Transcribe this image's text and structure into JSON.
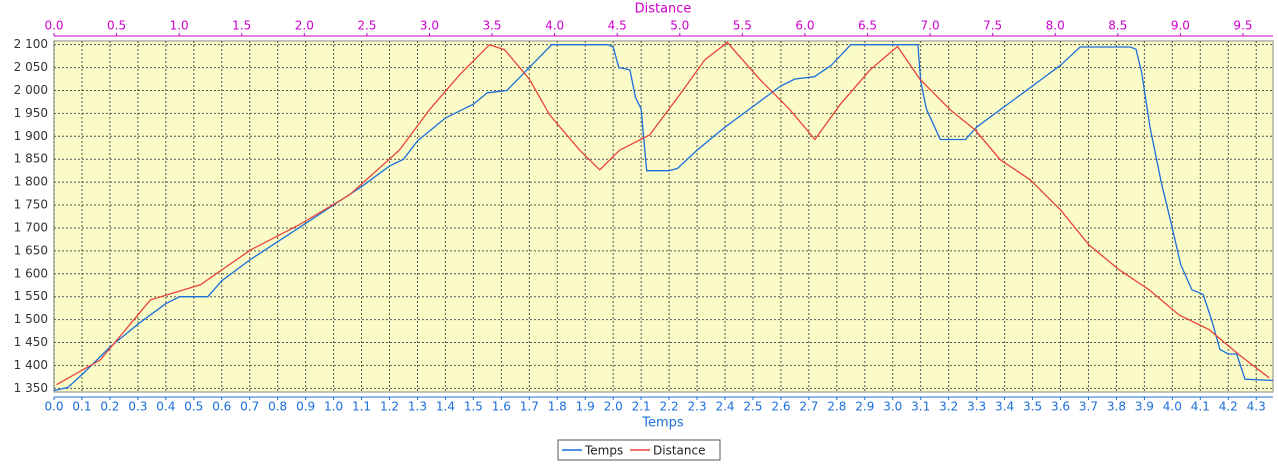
{
  "chart_data": {
    "type": "line",
    "xlabel": "Temps",
    "x2label": "Distance",
    "xlim": [
      0,
      4.36
    ],
    "x2lim": [
      0,
      9.74
    ],
    "ylim": [
      1342,
      2108
    ],
    "xticks": [
      {
        "value": 0,
        "label": "0.0"
      },
      0.1,
      0.2,
      0.3,
      0.4,
      0.5,
      0.6,
      0.7,
      0.8,
      0.9,
      {
        "value": 1,
        "label": "1.0"
      },
      1.1,
      1.2,
      1.3,
      1.4,
      1.5,
      1.6,
      1.7,
      1.8,
      1.9,
      {
        "value": 2,
        "label": "2.0"
      },
      2.1,
      2.2,
      2.3,
      2.4,
      2.5,
      2.6,
      2.7,
      2.8,
      2.9,
      {
        "value": 3,
        "label": "3.0"
      },
      3.1,
      3.2,
      3.3,
      3.4,
      3.5,
      3.6,
      3.7,
      3.8,
      3.9,
      {
        "value": 4,
        "label": "4.0"
      },
      4.1,
      4.2,
      4.3
    ],
    "x2ticks": [
      {
        "value": 0,
        "label": "0.0"
      },
      0.5,
      {
        "value": 1,
        "label": "1.0"
      },
      1.5,
      {
        "value": 2,
        "label": "2.0"
      },
      2.5,
      {
        "value": 3,
        "label": "3.0"
      },
      3.5,
      {
        "value": 4,
        "label": "4.0"
      },
      4.5,
      {
        "value": 5,
        "label": "5.0"
      },
      5.5,
      {
        "value": 6,
        "label": "6.0"
      },
      6.5,
      {
        "value": 7,
        "label": "7.0"
      },
      7.5,
      {
        "value": 8,
        "label": "8.0"
      },
      8.5,
      {
        "value": 9,
        "label": "9.0"
      },
      9.5
    ],
    "yticks": [
      {
        "value": 1350,
        "label": "1 350"
      },
      {
        "value": 1400,
        "label": "1 400"
      },
      {
        "value": 1450,
        "label": "1 450"
      },
      {
        "value": 1500,
        "label": "1 500"
      },
      {
        "value": 1550,
        "label": "1 550"
      },
      {
        "value": 1600,
        "label": "1 600"
      },
      {
        "value": 1650,
        "label": "1 650"
      },
      {
        "value": 1700,
        "label": "1 700"
      },
      {
        "value": 1750,
        "label": "1 750"
      },
      {
        "value": 1800,
        "label": "1 800"
      },
      {
        "value": 1850,
        "label": "1 850"
      },
      {
        "value": 1900,
        "label": "1 900"
      },
      {
        "value": 1950,
        "label": "1 950"
      },
      {
        "value": 2000,
        "label": "2 000"
      },
      {
        "value": 2050,
        "label": "2 050"
      },
      {
        "value": 2100,
        "label": "2 100"
      }
    ],
    "grid": true,
    "legend": "bottom",
    "series": [
      {
        "name": "Temps",
        "color": "#1a6fdb",
        "axis": "x",
        "x": [
          0,
          0.05,
          0.1,
          0.2,
          0.3,
          0.4,
          0.45,
          0.55,
          0.6,
          0.7,
          0.8,
          0.9,
          1.0,
          1.1,
          1.2,
          1.25,
          1.3,
          1.4,
          1.45,
          1.5,
          1.55,
          1.62,
          1.7,
          1.78,
          1.98,
          2.0,
          2.02,
          2.06,
          2.08,
          2.1,
          2.12,
          2.2,
          2.23,
          2.3,
          2.4,
          2.5,
          2.6,
          2.65,
          2.72,
          2.78,
          2.85,
          3.09,
          3.1,
          3.12,
          3.17,
          3.26,
          3.3,
          3.4,
          3.5,
          3.6,
          3.67,
          3.85,
          3.87,
          3.89,
          3.92,
          3.96,
          4.0,
          4.03,
          4.07,
          4.11,
          4.14,
          4.17,
          4.2,
          4.23,
          4.26,
          4.36
        ],
        "values": [
          1345,
          1352,
          1380,
          1440,
          1490,
          1535,
          1550,
          1550,
          1585,
          1630,
          1670,
          1710,
          1750,
          1790,
          1835,
          1850,
          1890,
          1940,
          1955,
          1970,
          1995,
          2000,
          2050,
          2100,
          2100,
          2095,
          2050,
          2045,
          1985,
          1960,
          1825,
          1825,
          1830,
          1870,
          1920,
          1965,
          2010,
          2025,
          2030,
          2055,
          2100,
          2100,
          2020,
          1960,
          1893,
          1893,
          1920,
          1965,
          2010,
          2055,
          2095,
          2095,
          2090,
          2040,
          1920,
          1800,
          1700,
          1620,
          1565,
          1555,
          1500,
          1435,
          1425,
          1425,
          1370,
          1367
        ]
      },
      {
        "name": "Distance",
        "color": "#e8443a",
        "axis": "x2",
        "x": [
          0.02,
          0.37,
          0.77,
          1.17,
          1.57,
          1.96,
          2.36,
          2.76,
          3.0,
          3.24,
          3.48,
          3.6,
          3.8,
          3.96,
          4.2,
          4.36,
          4.52,
          4.76,
          5.0,
          5.2,
          5.38,
          5.64,
          5.88,
          6.08,
          6.28,
          6.52,
          6.74,
          6.92,
          7.16,
          7.36,
          7.56,
          7.8,
          8.04,
          8.27,
          8.51,
          8.75,
          8.99,
          9.23,
          9.47,
          9.71
        ],
        "values": [
          1358,
          1412,
          1543,
          1576,
          1652,
          1707,
          1772,
          1870,
          1958,
          2034,
          2100,
          2089,
          2024,
          1947,
          1870,
          1827,
          1870,
          1903,
          1991,
          2067,
          2105,
          2024,
          1958,
          1893,
          1969,
          2045,
          2096,
          2024,
          1958,
          1914,
          1849,
          1805,
          1740,
          1663,
          1609,
          1565,
          1510,
          1478,
          1423,
          1373
        ]
      }
    ]
  }
}
